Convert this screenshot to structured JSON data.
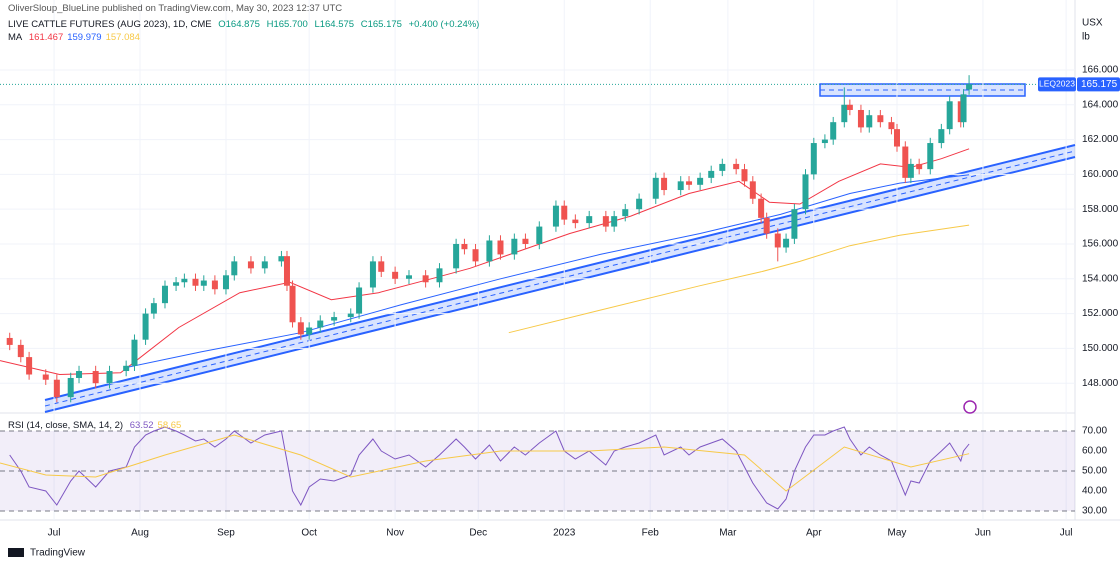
{
  "header": {
    "publisher": "OliverSloup_BlueLine published on TradingView.com, May 30, 2023 12:37 UTC",
    "footer": "TradingView"
  },
  "chart_data": [
    {
      "type": "candlestick",
      "title": "LIVE CATTLE FUTURES (AUG 2023), 1D, CME",
      "quote": [
        "O164.875",
        "H165.700",
        "L164.575",
        "C165.175",
        "+0.400 (+0.24%)"
      ],
      "symbol": "LEQ2023",
      "last_label": "165.175",
      "unit_labels": [
        "USX",
        "lb"
      ],
      "up_color": "#26a69a",
      "down_color": "#ef5350",
      "x": [
        14,
        18,
        21,
        27,
        31,
        36,
        39,
        45,
        50,
        56,
        59,
        63,
        66,
        70,
        74,
        77,
        81,
        84,
        88,
        92,
        95,
        101,
        106,
        112,
        114,
        116,
        119,
        122,
        126,
        131,
        137,
        140,
        145,
        148,
        153,
        158,
        164,
        169,
        175,
        178,
        182,
        187,
        191,
        196,
        200,
        205,
        211,
        214,
        218,
        223,
        229,
        232,
        236,
        241,
        247,
        250,
        256,
        259,
        263,
        267,
        271,
        276,
        279,
        282,
        285,
        287,
        291,
        294,
        297,
        301,
        304,
        308,
        311,
        315,
        317,
        321,
        324,
        328,
        332,
        334,
        337,
        339,
        342,
        346,
        350,
        353,
        357,
        358,
        360
      ],
      "candles": [
        [
          150.6,
          150.9,
          149.9,
          150.2
        ],
        [
          150.2,
          150.5,
          149.2,
          149.5
        ],
        [
          149.5,
          149.8,
          148.2,
          148.5
        ],
        [
          148.5,
          148.8,
          147.9,
          148.2
        ],
        [
          148.2,
          148.5,
          146.9,
          147.2
        ],
        [
          147.2,
          148.6,
          146.9,
          148.3
        ],
        [
          148.3,
          149.0,
          148.0,
          148.7
        ],
        [
          148.7,
          149.0,
          147.7,
          148.0
        ],
        [
          148.0,
          149.0,
          147.7,
          148.7
        ],
        [
          148.7,
          149.3,
          148.4,
          149.0
        ],
        [
          149.0,
          150.8,
          148.7,
          150.5
        ],
        [
          150.5,
          152.3,
          150.2,
          152.0
        ],
        [
          152.0,
          152.9,
          151.7,
          152.6
        ],
        [
          152.6,
          153.9,
          152.3,
          153.6
        ],
        [
          153.6,
          154.1,
          153.3,
          153.8
        ],
        [
          153.8,
          154.3,
          153.5,
          154.0
        ],
        [
          154.0,
          154.3,
          153.3,
          153.6
        ],
        [
          153.6,
          154.2,
          153.3,
          153.9
        ],
        [
          153.9,
          154.2,
          153.1,
          153.4
        ],
        [
          153.4,
          154.5,
          153.1,
          154.2
        ],
        [
          154.2,
          155.3,
          153.9,
          155.0
        ],
        [
          155.0,
          155.3,
          154.3,
          154.6
        ],
        [
          154.6,
          155.3,
          154.3,
          155.0
        ],
        [
          155.0,
          155.6,
          154.7,
          155.3
        ],
        [
          155.3,
          155.6,
          153.3,
          153.6
        ],
        [
          153.6,
          153.9,
          151.2,
          151.5
        ],
        [
          151.5,
          151.8,
          150.5,
          150.8
        ],
        [
          150.8,
          151.5,
          150.5,
          151.2
        ],
        [
          151.2,
          151.9,
          150.9,
          151.6
        ],
        [
          151.6,
          152.1,
          151.3,
          151.8
        ],
        [
          151.8,
          152.3,
          151.5,
          152.0
        ],
        [
          152.0,
          153.8,
          151.7,
          153.5
        ],
        [
          153.5,
          155.3,
          153.2,
          155.0
        ],
        [
          155.0,
          155.3,
          154.1,
          154.4
        ],
        [
          154.4,
          154.7,
          153.7,
          154.0
        ],
        [
          154.0,
          154.5,
          153.7,
          154.2
        ],
        [
          154.2,
          154.5,
          153.5,
          153.8
        ],
        [
          153.8,
          154.9,
          153.5,
          154.6
        ],
        [
          154.6,
          156.3,
          154.3,
          156.0
        ],
        [
          156.0,
          156.3,
          155.4,
          155.7
        ],
        [
          155.7,
          156.0,
          154.7,
          155.0
        ],
        [
          155.0,
          156.5,
          154.7,
          156.2
        ],
        [
          156.2,
          156.5,
          155.1,
          155.4
        ],
        [
          155.4,
          156.6,
          155.1,
          156.3
        ],
        [
          156.3,
          156.6,
          155.7,
          156.0
        ],
        [
          156.0,
          157.3,
          155.7,
          157.0
        ],
        [
          157.0,
          158.5,
          156.7,
          158.2
        ],
        [
          158.2,
          158.5,
          157.1,
          157.4
        ],
        [
          157.4,
          157.7,
          156.9,
          157.2
        ],
        [
          157.2,
          157.9,
          156.9,
          157.6
        ],
        [
          157.6,
          157.9,
          156.7,
          157.0
        ],
        [
          157.0,
          157.9,
          156.7,
          157.6
        ],
        [
          157.6,
          158.3,
          157.3,
          158.0
        ],
        [
          158.0,
          158.9,
          157.7,
          158.6
        ],
        [
          158.6,
          160.1,
          158.3,
          159.8
        ],
        [
          159.8,
          160.1,
          158.8,
          159.1
        ],
        [
          159.1,
          159.9,
          158.8,
          159.6
        ],
        [
          159.6,
          159.9,
          159.1,
          159.4
        ],
        [
          159.4,
          160.1,
          159.1,
          159.8
        ],
        [
          159.8,
          160.5,
          159.5,
          160.2
        ],
        [
          160.2,
          160.9,
          159.9,
          160.6
        ],
        [
          160.6,
          160.9,
          160.0,
          160.3
        ],
        [
          160.3,
          160.6,
          159.3,
          159.6
        ],
        [
          159.6,
          159.9,
          158.3,
          158.6
        ],
        [
          158.6,
          158.9,
          157.2,
          157.5
        ],
        [
          157.5,
          157.8,
          156.3,
          156.6
        ],
        [
          156.6,
          156.9,
          155.0,
          155.8
        ],
        [
          155.8,
          156.6,
          155.5,
          156.3
        ],
        [
          156.3,
          158.3,
          156.0,
          158.0
        ],
        [
          158.0,
          160.3,
          157.7,
          160.0
        ],
        [
          160.0,
          162.1,
          159.7,
          161.8
        ],
        [
          161.8,
          162.3,
          161.5,
          162.0
        ],
        [
          162.0,
          163.3,
          161.7,
          163.0
        ],
        [
          163.0,
          165.0,
          162.7,
          164.0
        ],
        [
          164.0,
          164.3,
          163.4,
          163.7
        ],
        [
          163.7,
          164.0,
          162.4,
          162.7
        ],
        [
          162.7,
          163.7,
          162.4,
          163.4
        ],
        [
          163.4,
          163.7,
          162.7,
          163.0
        ],
        [
          163.0,
          163.3,
          162.3,
          162.6
        ],
        [
          162.6,
          162.9,
          161.3,
          161.6
        ],
        [
          161.6,
          161.9,
          159.5,
          159.8
        ],
        [
          159.8,
          160.9,
          159.5,
          160.6
        ],
        [
          160.6,
          160.9,
          160.0,
          160.3
        ],
        [
          160.3,
          162.1,
          160.0,
          161.8
        ],
        [
          161.8,
          162.9,
          161.5,
          162.6
        ],
        [
          162.6,
          164.5,
          162.3,
          164.2
        ],
        [
          164.2,
          164.5,
          162.7,
          163.0
        ],
        [
          163.0,
          164.9,
          162.7,
          164.6
        ],
        [
          164.875,
          165.7,
          164.575,
          165.175
        ]
      ],
      "xlim": [
        10.5,
        398.2
      ],
      "xticks": [
        {
          "value": 30,
          "label": "Jul"
        },
        {
          "value": 61,
          "label": "Aug"
        },
        {
          "value": 92,
          "label": "Sep"
        },
        {
          "value": 122,
          "label": "Oct"
        },
        {
          "value": 153,
          "label": "Nov"
        },
        {
          "value": 183,
          "label": "Dec"
        },
        {
          "value": 214,
          "label": "2023"
        },
        {
          "value": 245,
          "label": "Feb"
        },
        {
          "value": 273,
          "label": "Mar"
        },
        {
          "value": 304,
          "label": "Apr"
        },
        {
          "value": 334,
          "label": "May"
        },
        {
          "value": 365,
          "label": "Jun"
        },
        {
          "value": 395,
          "label": "Jul"
        }
      ],
      "ylim": [
        146.46,
        170.02
      ],
      "yticks": [
        {
          "value": 148,
          "label": "148.000"
        },
        {
          "value": 150,
          "label": "150.000"
        },
        {
          "value": 152,
          "label": "152.000"
        },
        {
          "value": 154,
          "label": "154.000"
        },
        {
          "value": 156,
          "label": "156.000"
        },
        {
          "value": 158,
          "label": "158.000"
        },
        {
          "value": 160,
          "label": "160.000"
        },
        {
          "value": 162,
          "label": "162.000"
        },
        {
          "value": 164,
          "label": "164.000"
        },
        {
          "value": 166,
          "label": "166.000"
        }
      ],
      "indicator": {
        "label": "MA",
        "series": [
          {
            "value_label": "161.467",
            "color": "#f23645",
            "x": [
              10.5,
              32,
              54,
              75,
              97,
              115,
              130,
              147,
              166,
              180,
              198,
              216,
              238,
              259,
              277,
              288,
              299,
              313,
              328,
              339,
              350,
              360
            ],
            "values": [
              149.3,
              148.5,
              148.6,
              151.2,
              153.2,
              153.8,
              152.8,
              153.2,
              154.0,
              154.6,
              155.6,
              156.6,
              157.6,
              158.9,
              159.6,
              158.4,
              158.3,
              159.6,
              160.6,
              160.4,
              160.9,
              161.467
            ]
          },
          {
            "value_label": "159.979",
            "color": "#2962ff",
            "x": [
              56,
              83,
              119,
              155,
              191,
              227,
              263,
              292,
              317,
              335,
              360
            ],
            "values": [
              148.9,
              149.8,
              150.9,
              152.5,
              154.0,
              155.4,
              156.6,
              157.7,
              158.9,
              159.5,
              159.979
            ]
          },
          {
            "value_label": "157.084",
            "color": "#f7c948",
            "x": [
              194,
              227,
              263,
              285,
              299,
              317,
              335,
              360
            ],
            "values": [
              150.9,
              152.2,
              153.6,
              154.4,
              155.0,
              155.9,
              156.5,
              157.084
            ]
          }
        ]
      }
    },
    {
      "type": "line",
      "title": "RSI (14, close, SMA, 14, 2)",
      "ylim": [
        25.5,
        78
      ],
      "yticks": [
        {
          "value": 30,
          "label": "30.00"
        },
        {
          "value": 40,
          "label": "40.00"
        },
        {
          "value": 50,
          "label": "50.00"
        },
        {
          "value": 60,
          "label": "60.00"
        },
        {
          "value": 70,
          "label": "70.00"
        }
      ],
      "bands": [
        70,
        50,
        30
      ],
      "series": [
        {
          "value_label": "63.52",
          "color": "#7e57c2",
          "x": [
            14,
            18,
            21,
            27,
            31,
            36,
            39,
            45,
            50,
            56,
            59,
            63,
            66,
            70,
            74,
            77,
            81,
            84,
            88,
            92,
            95,
            101,
            106,
            112,
            114,
            116,
            119,
            122,
            126,
            131,
            137,
            140,
            145,
            148,
            153,
            158,
            164,
            169,
            175,
            178,
            182,
            187,
            191,
            196,
            200,
            205,
            211,
            214,
            218,
            223,
            229,
            232,
            236,
            241,
            247,
            250,
            256,
            259,
            263,
            267,
            271,
            276,
            279,
            282,
            285,
            287,
            291,
            294,
            297,
            301,
            304,
            308,
            311,
            315,
            317,
            321,
            324,
            328,
            332,
            334,
            337,
            339,
            342,
            346,
            350,
            353,
            357,
            358,
            360
          ],
          "values": [
            58,
            50,
            42,
            40,
            33,
            45,
            50,
            42,
            50,
            52,
            62,
            68,
            70,
            72,
            70,
            68,
            65,
            66,
            62,
            66,
            70,
            64,
            68,
            70,
            55,
            40,
            33,
            42,
            46,
            45,
            48,
            58,
            66,
            60,
            56,
            58,
            52,
            58,
            66,
            62,
            56,
            63,
            55,
            62,
            58,
            64,
            70,
            60,
            56,
            60,
            53,
            60,
            62,
            64,
            68,
            58,
            62,
            58,
            62,
            64,
            66,
            60,
            52,
            44,
            38,
            34,
            31,
            36,
            50,
            62,
            68,
            68,
            70,
            72,
            66,
            58,
            62,
            58,
            55,
            48,
            38,
            45,
            44,
            55,
            60,
            64,
            55,
            60,
            63.52
          ]
        },
        {
          "value_label": "58.65",
          "color": "#f7c948",
          "x": [
            10.5,
            27,
            45,
            70,
            95,
            119,
            137,
            164,
            191,
            223,
            250,
            279,
            294,
            315,
            339,
            360
          ],
          "values": [
            54,
            48,
            47,
            58,
            68,
            58,
            47,
            55,
            60,
            60,
            62,
            58,
            40,
            62,
            52,
            58.65
          ]
        }
      ]
    }
  ]
}
